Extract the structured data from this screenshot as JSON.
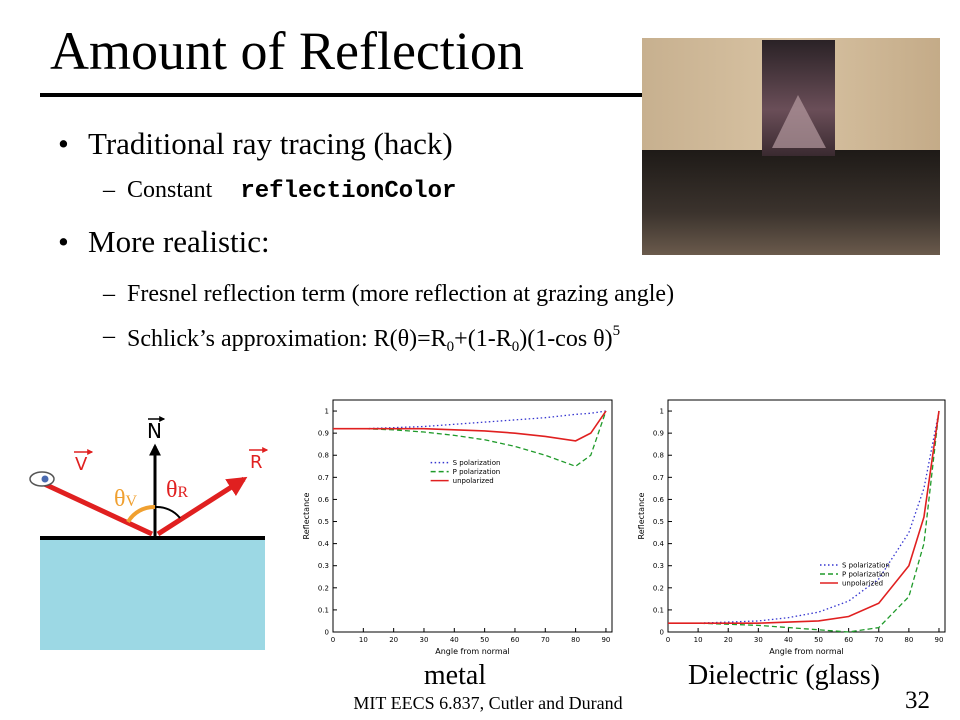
{
  "title": "Amount of Reflection",
  "bullets": [
    {
      "marker": "•",
      "text": "Traditional ray tracing (hack)",
      "subs": [
        {
          "marker": "–",
          "parts": [
            {
              "text": "Constant",
              "style": "plain"
            },
            {
              "text": "reflectionColor",
              "style": "code"
            }
          ]
        }
      ]
    },
    {
      "marker": "•",
      "text": "More realistic:",
      "subs": [
        {
          "marker": "–",
          "parts": [
            {
              "text": "Fresnel reflection term (more reflection at grazing angle)",
              "style": "plain"
            }
          ]
        },
        {
          "marker": "–",
          "parts": [
            {
              "text": "Schlick’s approximation: R(θ)=R",
              "style": "plain"
            },
            {
              "text": "0",
              "style": "sub"
            },
            {
              "text": "+(1-R",
              "style": "plain"
            },
            {
              "text": "0",
              "style": "sub"
            },
            {
              "text": ")(1-cos θ)",
              "style": "plain"
            },
            {
              "text": "5",
              "style": "sup"
            }
          ]
        }
      ]
    }
  ],
  "diagram": {
    "normal": "N",
    "incident": "V",
    "reflected": "R",
    "angle_v": {
      "symbol": "θ",
      "sub": "V"
    },
    "angle_r": {
      "symbol": "θ",
      "sub": "R"
    }
  },
  "chart_data": [
    {
      "type": "line",
      "caption": "metal",
      "x_label": "Angle from normal",
      "y_label": "Reflectance",
      "x": [
        0,
        10,
        20,
        30,
        40,
        50,
        60,
        70,
        80,
        85,
        90
      ],
      "series": [
        {
          "name": "S polarization",
          "color": "#3535d0",
          "dash": "dotted",
          "values": [
            0.92,
            0.92,
            0.925,
            0.93,
            0.94,
            0.95,
            0.96,
            0.97,
            0.985,
            0.99,
            1.0
          ]
        },
        {
          "name": "P polarization",
          "color": "#1f9a2a",
          "dash": "dashed",
          "values": [
            0.92,
            0.92,
            0.915,
            0.905,
            0.89,
            0.87,
            0.84,
            0.8,
            0.75,
            0.8,
            1.0
          ]
        },
        {
          "name": "unpolarized",
          "color": "#e02020",
          "dash": "solid",
          "values": [
            0.92,
            0.92,
            0.92,
            0.92,
            0.915,
            0.91,
            0.9,
            0.885,
            0.865,
            0.9,
            1.0
          ]
        }
      ],
      "xlim": [
        0,
        92
      ],
      "ylim": [
        0,
        1.05
      ],
      "xticks": [
        0,
        10,
        20,
        30,
        40,
        50,
        60,
        70,
        80,
        90
      ],
      "yticks": [
        0,
        0.1,
        0.2,
        0.3,
        0.4,
        0.5,
        0.6,
        0.7,
        0.8,
        0.9,
        1
      ],
      "legend": "center"
    },
    {
      "type": "line",
      "caption": "Dielectric (glass)",
      "x_label": "Angle from normal",
      "y_label": "Reflectance",
      "x": [
        0,
        10,
        20,
        30,
        40,
        50,
        60,
        70,
        80,
        85,
        90
      ],
      "series": [
        {
          "name": "S polarization",
          "color": "#3535d0",
          "dash": "dotted",
          "values": [
            0.04,
            0.04,
            0.045,
            0.05,
            0.065,
            0.09,
            0.14,
            0.24,
            0.45,
            0.65,
            1.0
          ]
        },
        {
          "name": "P polarization",
          "color": "#1f9a2a",
          "dash": "dashed",
          "values": [
            0.04,
            0.04,
            0.035,
            0.03,
            0.02,
            0.01,
            0,
            0.02,
            0.16,
            0.4,
            1.0
          ]
        },
        {
          "name": "unpolarized",
          "color": "#e02020",
          "dash": "solid",
          "values": [
            0.04,
            0.04,
            0.04,
            0.04,
            0.045,
            0.05,
            0.07,
            0.13,
            0.3,
            0.52,
            1.0
          ]
        }
      ],
      "xlim": [
        0,
        92
      ],
      "ylim": [
        0,
        1.05
      ],
      "xticks": [
        0,
        10,
        20,
        30,
        40,
        50,
        60,
        70,
        80,
        90
      ],
      "yticks": [
        0,
        0.1,
        0.2,
        0.3,
        0.4,
        0.5,
        0.6,
        0.7,
        0.8,
        0.9,
        1
      ],
      "legend": "lower right"
    }
  ],
  "footer": "MIT EECS 6.837, Cutler and Durand",
  "page_number": "32"
}
